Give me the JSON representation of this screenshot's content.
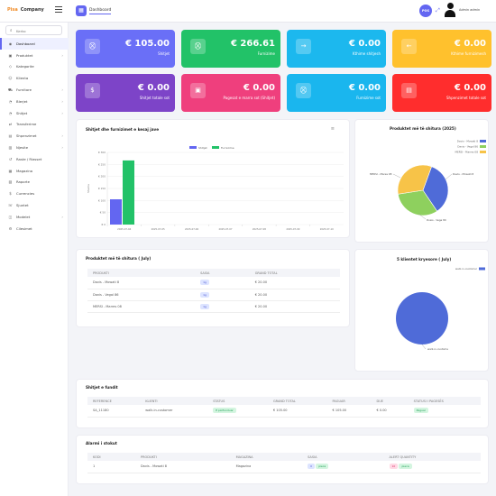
{
  "header": {
    "brand_a": "Pisa",
    "brand_b": "Company",
    "tab": "Dashboard",
    "pos": "POS",
    "user": "Admin admin"
  },
  "colors": {
    "accent": "#6366f1"
  },
  "search": {
    "placeholder": "Kerko"
  },
  "sidebar": {
    "items": [
      {
        "label": "Dashboard",
        "icon": "dashboard-icon",
        "active": true,
        "chev": false
      },
      {
        "label": "Produktet",
        "icon": "box-icon",
        "chev": true
      },
      {
        "label": "Kategorite",
        "icon": "tag-icon",
        "chev": false
      },
      {
        "label": "Klienta",
        "icon": "users-icon",
        "chev": false
      },
      {
        "label": "Furnitore",
        "icon": "truck-icon",
        "chev": true
      },
      {
        "label": "Blerjet",
        "icon": "cart-icon",
        "chev": true
      },
      {
        "label": "Shitjet",
        "icon": "cart-icon",
        "chev": true
      },
      {
        "label": "Transferime",
        "icon": "transfer-icon",
        "chev": false
      },
      {
        "label": "Shpenzimet",
        "icon": "wallet-icon",
        "chev": true
      },
      {
        "label": "Njesite",
        "icon": "ruler-icon",
        "chev": true
      },
      {
        "label": "Raste / Riasset",
        "icon": "refresh-icon",
        "chev": false
      },
      {
        "label": "Magazina",
        "icon": "warehouse-icon",
        "chev": false
      },
      {
        "label": "Raporte",
        "icon": "report-icon",
        "chev": false
      },
      {
        "label": "Currencies",
        "icon": "currency-icon",
        "chev": false
      },
      {
        "label": "Sjuntet",
        "icon": "phone-icon",
        "chev": false
      },
      {
        "label": "Modelet",
        "icon": "layers-icon",
        "chev": true
      },
      {
        "label": "Cilesimet",
        "icon": "gear-icon",
        "chev": false
      }
    ]
  },
  "cards": [
    {
      "value": "€ 105.00",
      "caption": "Shitjet",
      "color": "#6a6ff7",
      "icon": "cart-icon"
    },
    {
      "value": "€ 266.61",
      "caption": "Furnizime",
      "color": "#22c268",
      "icon": "cart-icon"
    },
    {
      "value": "€ 0.00",
      "caption": "Kthime shitjesh",
      "color": "#1cb8ee",
      "icon": "arrow-right-icon"
    },
    {
      "value": "€ 0.00",
      "caption": "Kthime furnizimesh",
      "color": "#ffc12d",
      "icon": "arrow-left-icon"
    },
    {
      "value": "€ 0.00",
      "caption": "Shitjet totale sot",
      "color": "#7d44c8",
      "icon": "dollar-icon"
    },
    {
      "value": "€ 0.00",
      "caption": "Pagesat e marra sot (Shitjet)",
      "color": "#ef3f7d",
      "icon": "money-icon"
    },
    {
      "value": "€ 0.00",
      "caption": "Furnizime sot",
      "color": "#1ab6ee",
      "icon": "cart-icon"
    },
    {
      "value": "€ 0.00",
      "caption": "Shpenzimet totale sot",
      "color": "#ff2d2d",
      "icon": "receipt-icon"
    }
  ],
  "week_chart": {
    "title": "Shitjet dhe furnizimet e kesaj jave",
    "menu": "≡",
    "chart_data": {
      "type": "bar",
      "categories": [
        "2025-07-04",
        "2025-07-05",
        "2025-07-06",
        "2025-07-07",
        "2025-07-08",
        "2025-07-09",
        "2025-07-10"
      ],
      "series": [
        {
          "name": "Shitjet",
          "values": [
            105,
            0,
            0,
            0,
            0,
            0,
            0
          ],
          "color": "#6366f1"
        },
        {
          "name": "Furnizime",
          "values": [
            266.61,
            0,
            0,
            0,
            0,
            0,
            0
          ],
          "color": "#22c268"
        }
      ],
      "ylabel": "Shuma",
      "ylim": [
        0,
        300
      ],
      "yticks": [
        "€ 0",
        "€ 50",
        "€ 100",
        "€ 150",
        "€ 200",
        "€ 250",
        "€ 300"
      ]
    }
  },
  "top_year": {
    "title": "Produktet më të shitura (2025)",
    "chart_data": {
      "type": "pie",
      "labels": [
        "Davis - Mowati 8",
        "Danis - Vegal 86",
        "MERSI - Marres 08"
      ],
      "values": [
        35,
        32,
        33
      ],
      "colors": [
        "#4f6bd8",
        "#8ed05e",
        "#f7c348"
      ]
    },
    "callouts": [
      "MERSI - Mares 08",
      "Davis - Mowati 8",
      "Dosis - Vega 80"
    ]
  },
  "top_month": {
    "title": "Produktet më të shitura ( July)",
    "headers": [
      "PRODUKTI",
      "SASIA",
      "GRAND TOTAL"
    ],
    "rows": [
      [
        "Davis - Mowati 8",
        "1g",
        "€ 20.00"
      ],
      [
        "Danis - Vegal 86",
        "1g",
        "€ 20.00"
      ],
      [
        "MERSI - Marres 08",
        "1g",
        "€ 20.00"
      ]
    ]
  },
  "top_clients": {
    "title": "5 klientet kryesore ( July)",
    "chart_data": {
      "type": "pie",
      "labels": [
        "walk-in-customer"
      ],
      "values": [
        100
      ],
      "colors": [
        "#4f6bd8"
      ]
    },
    "callout": "walk-in-custome"
  },
  "recent_sales": {
    "title": "Shitjet e fundit",
    "headers": [
      "REFERENCE",
      "KLIENTI",
      "STATUS",
      "GRAND TOTAL",
      "PAGUAR",
      "DUE",
      "STATUSI I PAGESËS"
    ],
    "rows": [
      [
        "SA_11180",
        "walk-in-customer",
        "E përfunduar",
        "€ 105.00",
        "€ 105.00",
        "€ 0.00",
        "Paguar"
      ]
    ]
  },
  "alerts": {
    "title": "Alarmi i stokut",
    "headers": [
      "KODI",
      "PRODUKTI",
      "MAGAZINA",
      "SASIA",
      "ALERT QUANTITY"
    ],
    "rows": [
      [
        "1",
        "Davis - Mowati 8",
        "Magazina",
        "0",
        "pieca",
        "10",
        "pieca"
      ]
    ]
  }
}
